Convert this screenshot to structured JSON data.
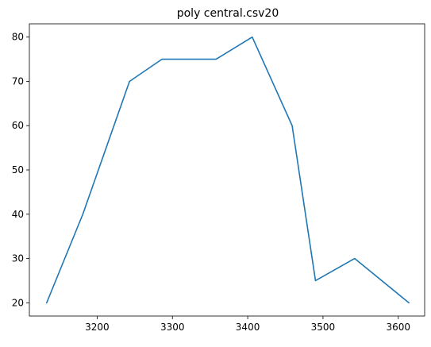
{
  "chart_data": {
    "type": "line",
    "title": "poly central.csv20",
    "xlabel": "",
    "ylabel": "",
    "xlim": [
      3110,
      3635
    ],
    "ylim": [
      17,
      83
    ],
    "xticks": [
      3200,
      3300,
      3400,
      3500,
      3600
    ],
    "yticks": [
      20,
      30,
      40,
      50,
      60,
      70,
      80
    ],
    "grid": false,
    "legend": "none",
    "series": [
      {
        "color": "#1f77b4",
        "points": [
          {
            "x": 3133,
            "y": 20
          },
          {
            "x": 3181,
            "y": 40
          },
          {
            "x": 3243,
            "y": 70
          },
          {
            "x": 3286,
            "y": 75
          },
          {
            "x": 3358,
            "y": 75
          },
          {
            "x": 3406,
            "y": 80
          },
          {
            "x": 3459,
            "y": 60
          },
          {
            "x": 3490,
            "y": 25
          },
          {
            "x": 3542,
            "y": 30
          },
          {
            "x": 3614,
            "y": 20
          }
        ]
      }
    ]
  }
}
